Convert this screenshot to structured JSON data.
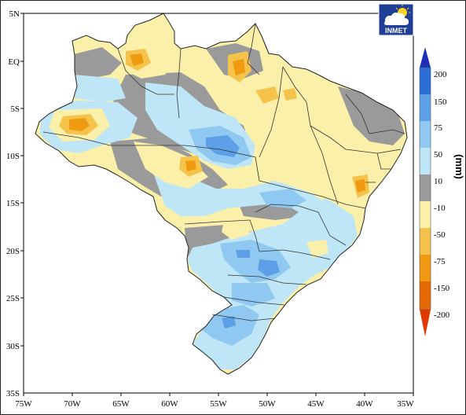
{
  "logo": {
    "text": "INMET"
  },
  "map_axes": {
    "x_ticks": [
      "75W",
      "70W",
      "65W",
      "60W",
      "55W",
      "50W",
      "45W",
      "40W",
      "35W"
    ],
    "y_ticks": [
      "5N",
      "EQ",
      "5S",
      "10S",
      "15S",
      "20S",
      "25S",
      "30S",
      "35S"
    ]
  },
  "colorbar": {
    "unit": "(mm)",
    "labels": [
      "200",
      "150",
      "75",
      "50",
      "10",
      "-10",
      "-50",
      "-75",
      "-150",
      "-200"
    ],
    "colors": [
      "#1a30b8",
      "#2a6fd6",
      "#5ea0e8",
      "#8fc8f0",
      "#bfe6f6",
      "#9a9a9a",
      "#fbf0aa",
      "#f5c34c",
      "#ef9a10",
      "#e56a06",
      "#e03a00"
    ]
  },
  "map_colors": {
    "ocean": "#ffffff",
    "land_base": "#fbf0aa",
    "neutral": "#9a9a9a",
    "wet_light": "#bfe6f6",
    "wet_mid": "#8fc8f0",
    "wet_strong": "#5ea0e8",
    "dry_mid": "#f5c34c",
    "dry_strong": "#ef9a10",
    "borders": "#222222"
  }
}
